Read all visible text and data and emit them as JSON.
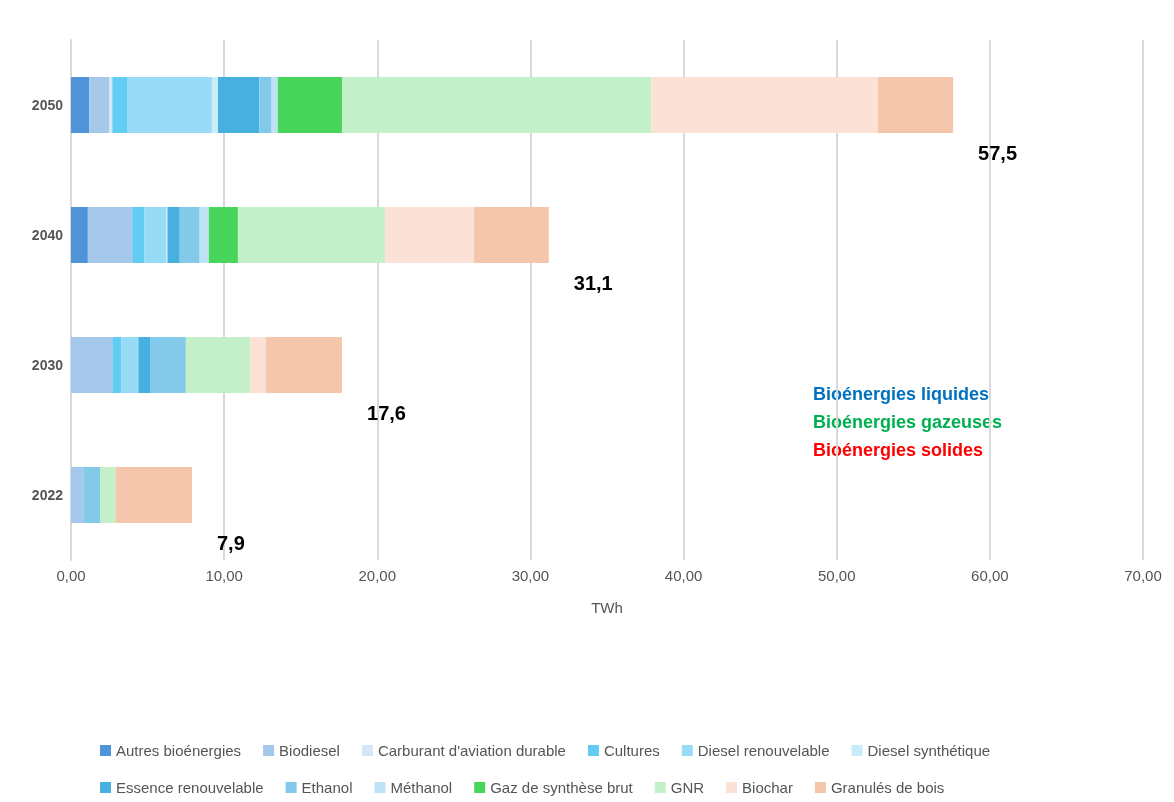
{
  "chart_data": {
    "type": "bar",
    "orientation": "horizontal",
    "stacked": true,
    "categories": [
      "2050",
      "2040",
      "2030",
      "2022"
    ],
    "series": [
      {
        "name": "Autres bioénergies",
        "color": "#4f94d9",
        "values": [
          1.2,
          1.1,
          0,
          0
        ]
      },
      {
        "name": "Biodiesel",
        "color": "#a6c8ea",
        "values": [
          1.3,
          2.9,
          2.7,
          0.8
        ]
      },
      {
        "name": "Carburant d'aviation durable",
        "color": "#d6e6f6",
        "values": [
          0.2,
          0,
          0,
          0
        ]
      },
      {
        "name": "Cultures",
        "color": "#62ccf2",
        "values": [
          1.0,
          0.8,
          0.6,
          0
        ]
      },
      {
        "name": "Diesel renouvelable",
        "color": "#97dbf7",
        "values": [
          5.5,
          1.4,
          1.1,
          0
        ]
      },
      {
        "name": "Diesel synthétique",
        "color": "#c8ecfa",
        "values": [
          0.4,
          0.1,
          0,
          0
        ]
      },
      {
        "name": "Essence renouvelable",
        "color": "#47b0e0",
        "values": [
          2.7,
          0.8,
          0.8,
          0
        ]
      },
      {
        "name": "Ethanol",
        "color": "#82c9ea",
        "values": [
          0.8,
          1.3,
          2.3,
          1.1
        ]
      },
      {
        "name": "Méthanol",
        "color": "#bfe3f5",
        "values": [
          0.4,
          0.6,
          0,
          0
        ]
      },
      {
        "name": "Gaz de synthèse brut",
        "color": "#48d55b",
        "values": [
          4.2,
          1.9,
          0,
          0
        ]
      },
      {
        "name": "GNR",
        "color": "#c3f0c8",
        "values": [
          20.2,
          9.6,
          4.2,
          1.0
        ]
      },
      {
        "name": "Biochar",
        "color": "#fce2d6",
        "values": [
          14.8,
          5.8,
          1.0,
          0
        ]
      },
      {
        "name": "Granulés de bois",
        "color": "#f5c6ac",
        "values": [
          4.9,
          4.9,
          5.0,
          5.0
        ]
      }
    ],
    "totals": [
      "57,5",
      "31,1",
      "17,6",
      "7,9"
    ],
    "xlabel": "TWh",
    "xlim": [
      0,
      70
    ],
    "xticks": [
      {
        "value": 0,
        "label": "0,00"
      },
      {
        "value": 10,
        "label": "10,00"
      },
      {
        "value": 20,
        "label": "20,00"
      },
      {
        "value": 30,
        "label": "30,00"
      },
      {
        "value": 40,
        "label": "40,00"
      },
      {
        "value": 50,
        "label": "50,00"
      },
      {
        "value": 60,
        "label": "60,00"
      },
      {
        "value": 70,
        "label": "70,00"
      }
    ],
    "grid": "x",
    "legend": "bottom",
    "annotations": [
      "Bioénergies liquides",
      "Bioénergies gazeuses",
      "Bioénergies solides"
    ]
  }
}
